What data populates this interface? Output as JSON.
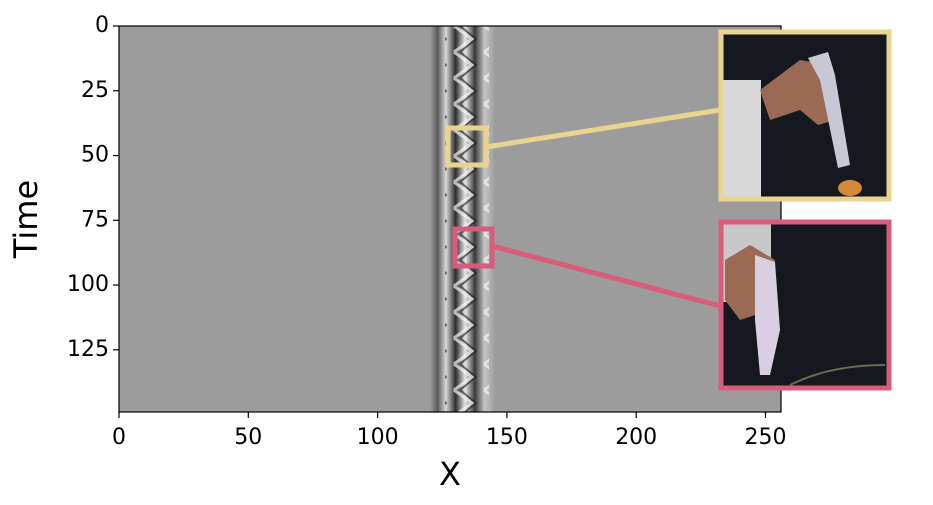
{
  "chart_data": {
    "type": "heatmap",
    "xlabel": "X",
    "ylabel": "Time",
    "xlim": [
      0,
      256
    ],
    "ylim": [
      0,
      149
    ],
    "y_inverted": true,
    "xticks": [
      0,
      50,
      100,
      150,
      200,
      250
    ],
    "yticks": [
      0,
      25,
      50,
      75,
      100,
      125
    ]
  }
}
